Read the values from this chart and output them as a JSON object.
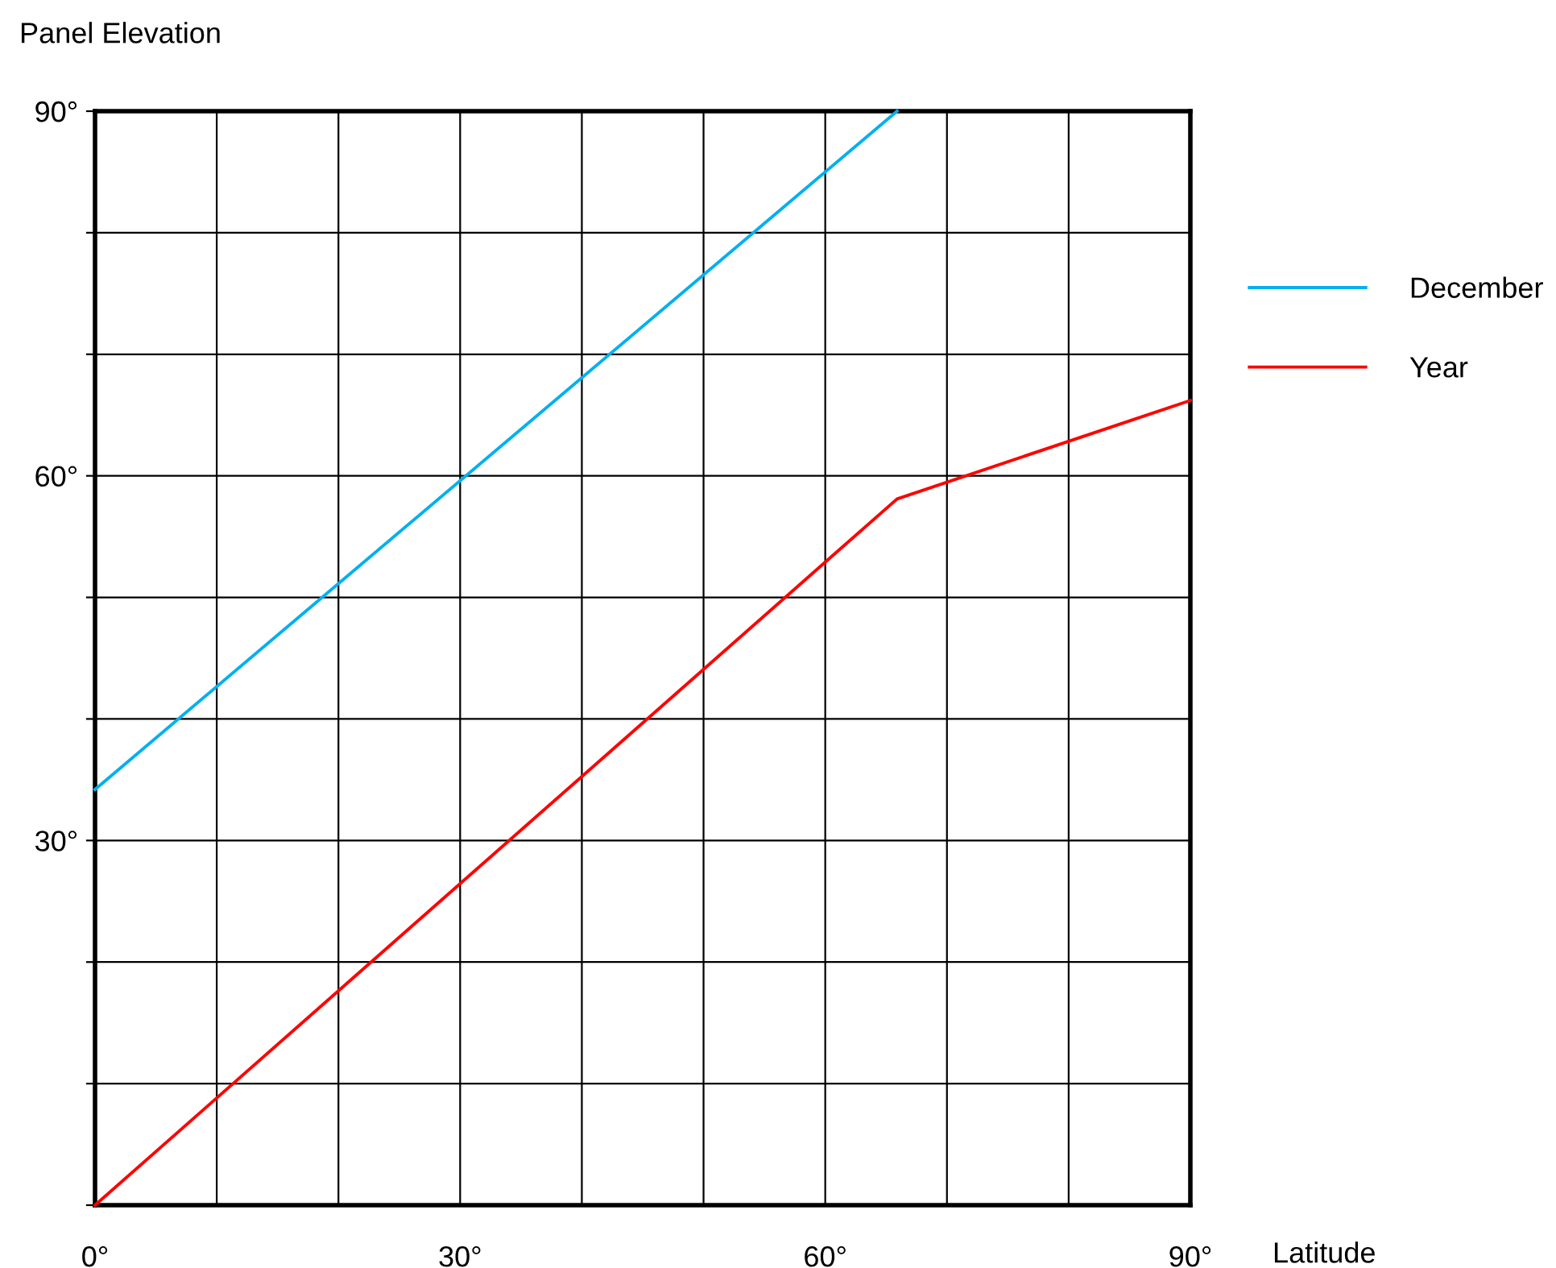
{
  "chart_data": {
    "type": "line",
    "xlabel": "Latitude",
    "ylabel": "Panel Elevation",
    "series": [
      {
        "name": "December",
        "color": "#00b0f0",
        "x": [
          0,
          65.9
        ],
        "values": [
          34.2,
          90
        ]
      },
      {
        "name": "Year",
        "color": "#ff0000",
        "x": [
          0,
          65.9,
          90
        ],
        "values": [
          0,
          58.1,
          66.2
        ]
      }
    ],
    "xlim": [
      0,
      90
    ],
    "ylim": [
      0,
      90
    ],
    "xticks": [
      {
        "value": 0,
        "label": "0°"
      },
      {
        "value": 10,
        "label": null
      },
      {
        "value": 20,
        "label": null
      },
      {
        "value": 30,
        "label": "30°"
      },
      {
        "value": 40,
        "label": null
      },
      {
        "value": 50,
        "label": null
      },
      {
        "value": 60,
        "label": "60°"
      },
      {
        "value": 70,
        "label": null
      },
      {
        "value": 80,
        "label": null
      },
      {
        "value": 90,
        "label": "90°"
      }
    ],
    "yticks": [
      {
        "value": 0,
        "label": null
      },
      {
        "value": 10,
        "label": null
      },
      {
        "value": 20,
        "label": null
      },
      {
        "value": 30,
        "label": "30°"
      },
      {
        "value": 40,
        "label": null
      },
      {
        "value": 50,
        "label": null
      },
      {
        "value": 60,
        "label": "60°"
      },
      {
        "value": 70,
        "label": null
      },
      {
        "value": 80,
        "label": null
      },
      {
        "value": 90,
        "label": "90°"
      }
    ],
    "grid": true,
    "legend": "right",
    "marker": "none",
    "line_style": "solid"
  }
}
